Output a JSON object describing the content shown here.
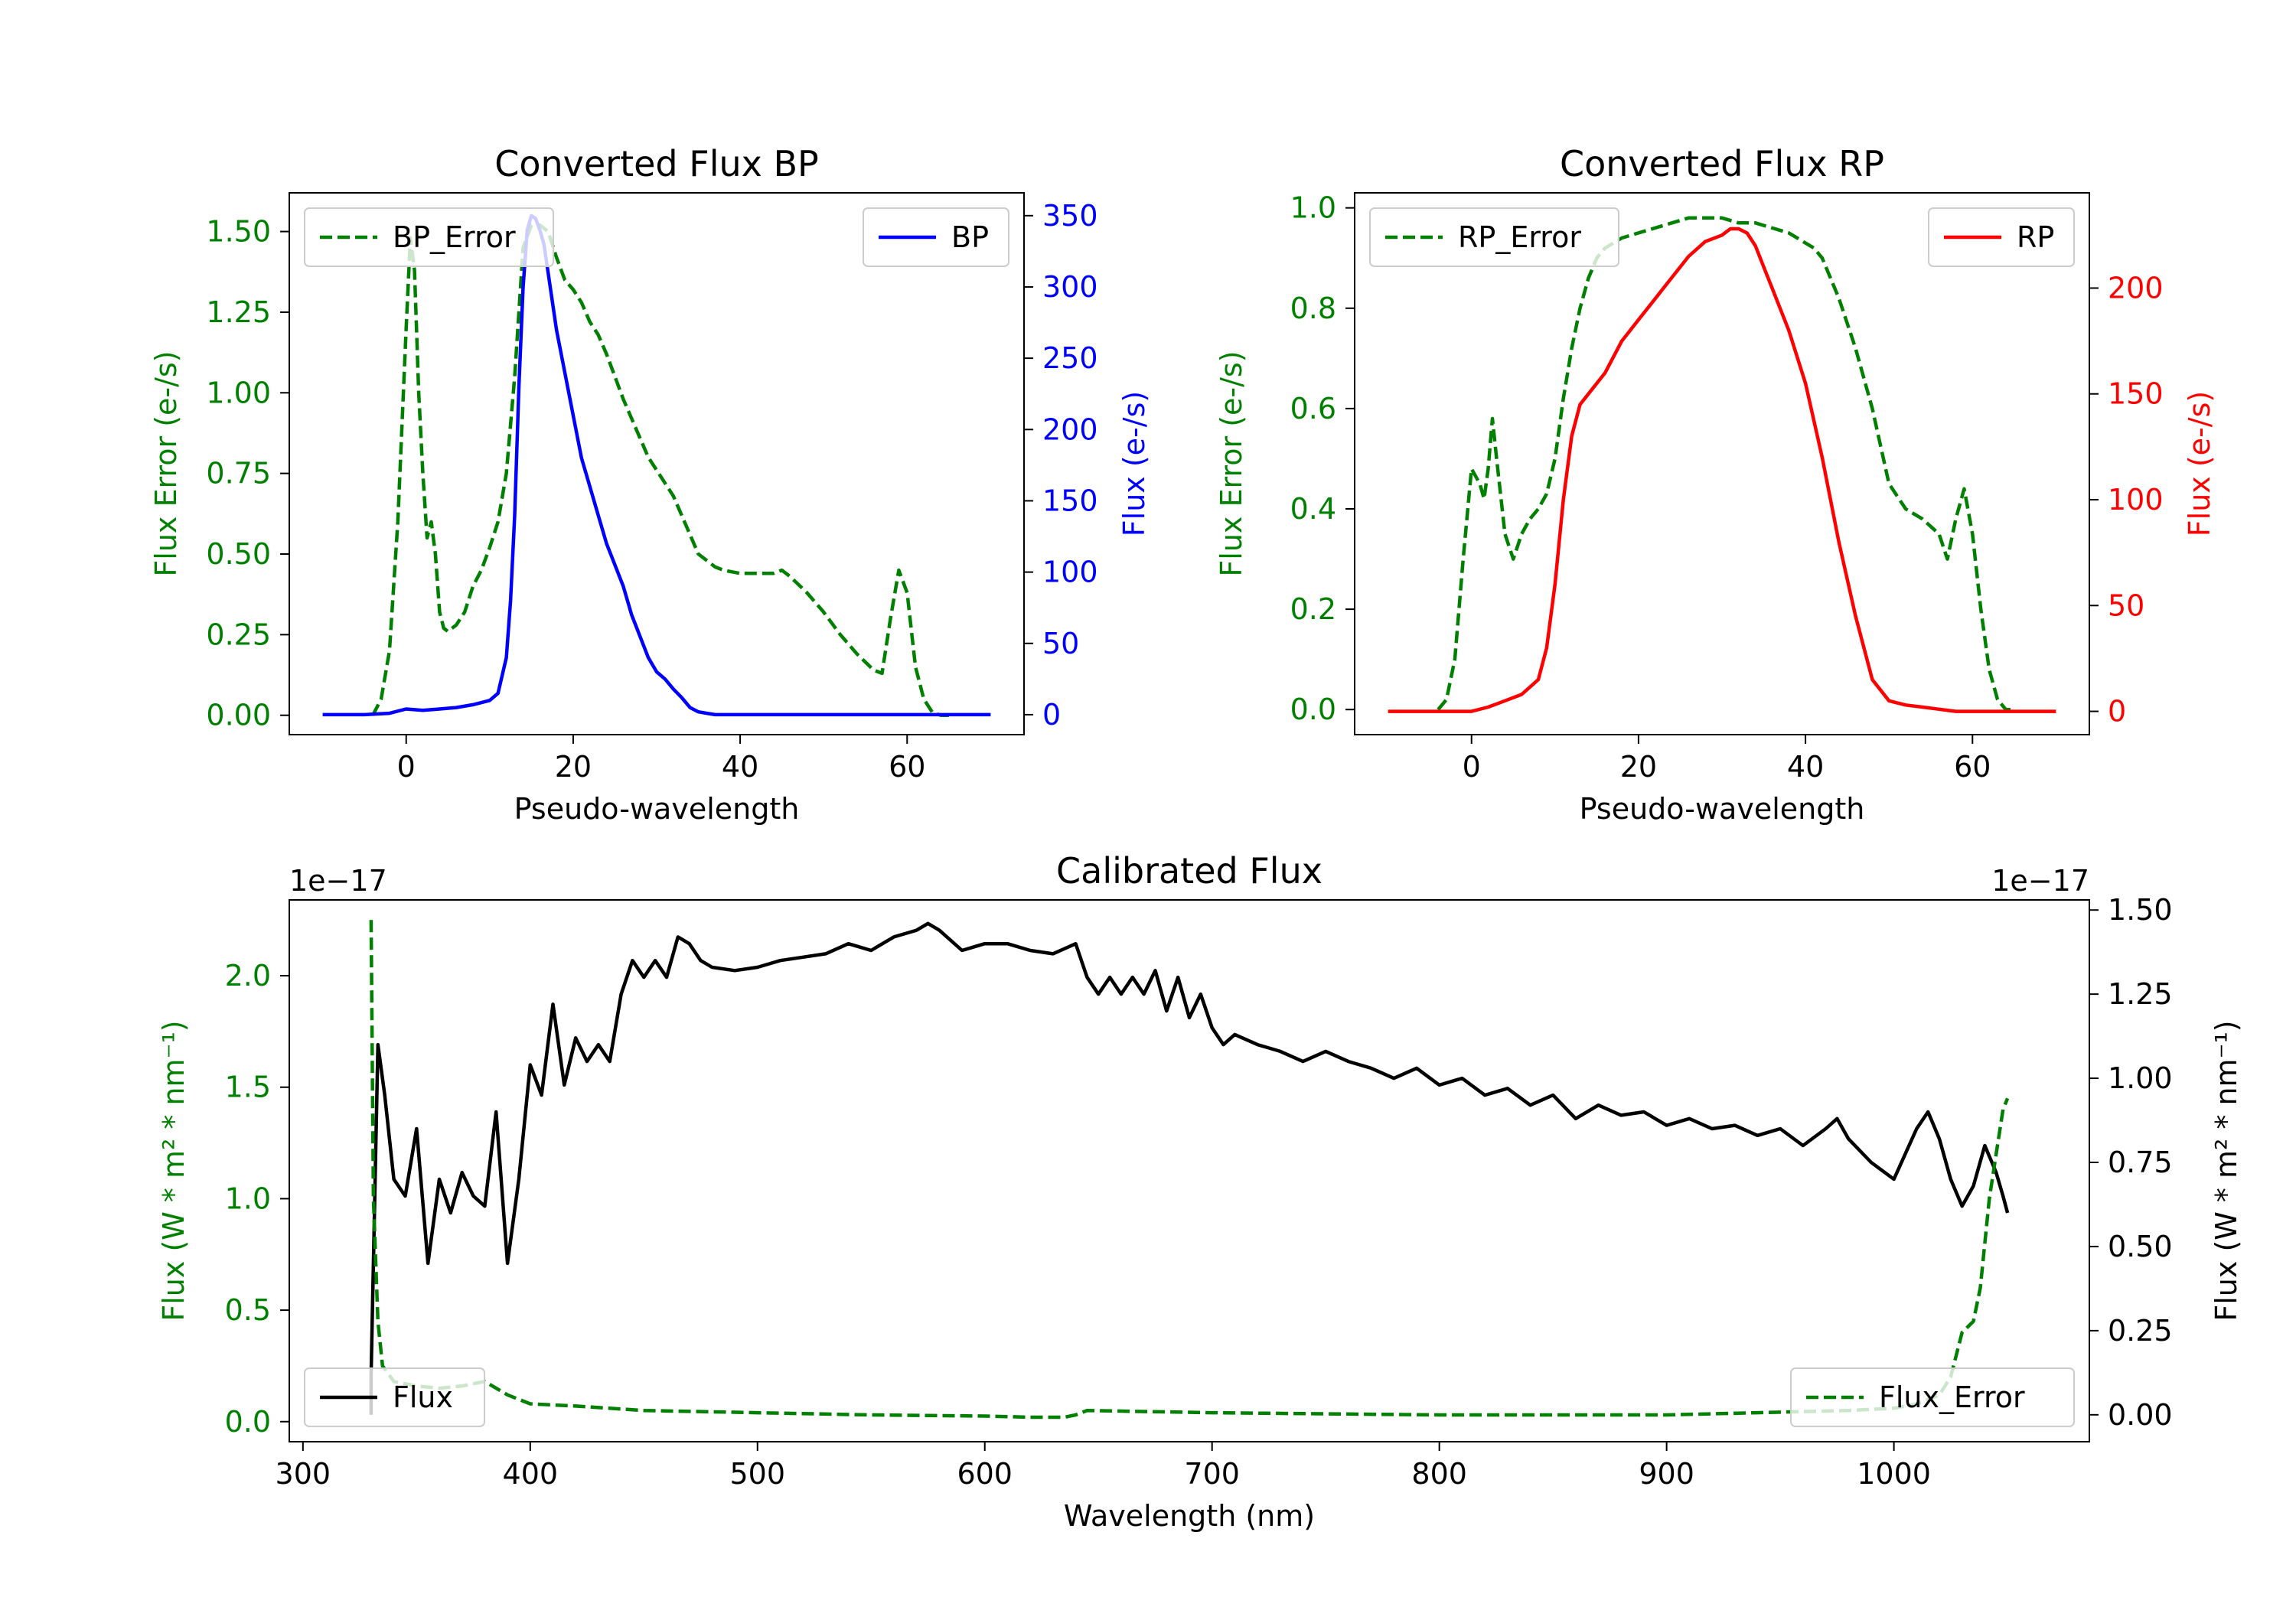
{
  "chart_data": [
    {
      "type": "line",
      "title": "Converted Flux BP",
      "xlabel": "Pseudo-wavelength",
      "ylabel_left": "Flux Error (e-/s)",
      "ylabel_right": "Flux (e-/s)",
      "xlim": [
        -14,
        74
      ],
      "ylim_left": [
        -0.06,
        1.62
      ],
      "ylim_right": [
        -14,
        366
      ],
      "xticks": [
        0,
        20,
        40,
        60
      ],
      "yticks_left": [
        0.0,
        0.25,
        0.5,
        0.75,
        1.0,
        1.25,
        1.5
      ],
      "yticks_left_labels": [
        "0.00",
        "0.25",
        "0.50",
        "0.75",
        "1.00",
        "1.25",
        "1.50"
      ],
      "yticks_right": [
        0,
        50,
        100,
        150,
        200,
        250,
        300,
        350
      ],
      "series": [
        {
          "name": "BP_Error",
          "axis": "left",
          "style": "dashed",
          "color": "#008000",
          "x": [
            -4,
            -3,
            -2,
            -1,
            0,
            0.5,
            1,
            1.5,
            2,
            2.5,
            3,
            3.5,
            4,
            4.5,
            5,
            6,
            7,
            8,
            9,
            10,
            11,
            12,
            13,
            14,
            15,
            16,
            17,
            18,
            19,
            20,
            21,
            22,
            23,
            24,
            25,
            26,
            27,
            28,
            29,
            30,
            31,
            32,
            33,
            34,
            35,
            36,
            37,
            38,
            40,
            42,
            44,
            45,
            46,
            48,
            50,
            52,
            54,
            56,
            57,
            58,
            59,
            60,
            61,
            62,
            63,
            64,
            65
          ],
          "values": [
            0.0,
            0.05,
            0.2,
            0.6,
            1.2,
            1.48,
            1.38,
            1.0,
            0.75,
            0.55,
            0.6,
            0.5,
            0.32,
            0.27,
            0.26,
            0.28,
            0.32,
            0.4,
            0.45,
            0.52,
            0.6,
            0.75,
            1.05,
            1.45,
            1.52,
            1.52,
            1.5,
            1.42,
            1.35,
            1.32,
            1.28,
            1.22,
            1.18,
            1.12,
            1.05,
            0.98,
            0.92,
            0.86,
            0.8,
            0.76,
            0.72,
            0.68,
            0.62,
            0.56,
            0.5,
            0.48,
            0.46,
            0.45,
            0.44,
            0.44,
            0.44,
            0.45,
            0.43,
            0.38,
            0.32,
            0.25,
            0.19,
            0.14,
            0.13,
            0.3,
            0.45,
            0.38,
            0.15,
            0.05,
            0.01,
            0.0,
            0.0
          ]
        },
        {
          "name": "BP",
          "axis": "right",
          "style": "solid",
          "color": "#0000ff",
          "x": [
            -10,
            -5,
            -2,
            0,
            2,
            4,
            6,
            8,
            10,
            11,
            12,
            12.5,
            13,
            13.5,
            14,
            14.5,
            15,
            15.5,
            16,
            16.5,
            17,
            18,
            19,
            20,
            21,
            22,
            23,
            24,
            25,
            26,
            27,
            28,
            29,
            30,
            31,
            32,
            33,
            34,
            35,
            36,
            37,
            38,
            40,
            42,
            44,
            46,
            48,
            50,
            52,
            55,
            60,
            65,
            70
          ],
          "values": [
            0,
            0,
            1,
            4,
            3,
            4,
            5,
            7,
            10,
            15,
            40,
            80,
            140,
            230,
            300,
            340,
            350,
            348,
            340,
            330,
            310,
            270,
            240,
            210,
            180,
            160,
            140,
            120,
            105,
            90,
            70,
            55,
            40,
            30,
            25,
            18,
            12,
            5,
            2,
            1,
            0,
            0,
            0,
            0,
            0,
            0,
            0,
            0,
            0,
            0,
            0,
            0,
            0
          ]
        }
      ],
      "legend": [
        {
          "label": "BP_Error",
          "placement": "top-left"
        },
        {
          "label": "BP",
          "placement": "top-right"
        }
      ]
    },
    {
      "type": "line",
      "title": "Converted Flux RP",
      "xlabel": "Pseudo-wavelength",
      "ylabel_left": "Flux Error (e-/s)",
      "ylabel_right": "Flux (e-/s)",
      "xlim": [
        -14,
        74
      ],
      "ylim_left": [
        -0.05,
        1.03
      ],
      "ylim_right": [
        -11,
        245
      ],
      "xticks": [
        0,
        20,
        40,
        60
      ],
      "yticks_left": [
        0.0,
        0.2,
        0.4,
        0.6,
        0.8,
        1.0
      ],
      "yticks_left_labels": [
        "0.0",
        "0.2",
        "0.4",
        "0.6",
        "0.8",
        "1.0"
      ],
      "yticks_right": [
        0,
        50,
        100,
        150,
        200
      ],
      "series": [
        {
          "name": "RP_Error",
          "axis": "left",
          "style": "dashed",
          "color": "#008000",
          "x": [
            -4,
            -3,
            -2,
            -1,
            0,
            1,
            1.5,
            2,
            2.5,
            3,
            4,
            5,
            6,
            7,
            8,
            9,
            10,
            11,
            12,
            13,
            14,
            15,
            16,
            18,
            20,
            22,
            24,
            26,
            28,
            30,
            32,
            34,
            36,
            38,
            40,
            41,
            42,
            44,
            46,
            48,
            50,
            52,
            54,
            56,
            57,
            58,
            59,
            60,
            61,
            62,
            63,
            64,
            65
          ],
          "values": [
            0.0,
            0.02,
            0.1,
            0.3,
            0.48,
            0.45,
            0.42,
            0.48,
            0.58,
            0.5,
            0.35,
            0.3,
            0.35,
            0.38,
            0.4,
            0.43,
            0.5,
            0.62,
            0.72,
            0.8,
            0.86,
            0.9,
            0.92,
            0.94,
            0.95,
            0.96,
            0.97,
            0.98,
            0.98,
            0.98,
            0.97,
            0.97,
            0.96,
            0.95,
            0.93,
            0.92,
            0.9,
            0.82,
            0.72,
            0.6,
            0.45,
            0.4,
            0.38,
            0.35,
            0.3,
            0.38,
            0.44,
            0.35,
            0.2,
            0.08,
            0.02,
            0.0,
            0.0
          ]
        },
        {
          "name": "RP",
          "axis": "right",
          "style": "solid",
          "color": "#ff0000",
          "x": [
            -10,
            -5,
            0,
            2,
            4,
            6,
            8,
            9,
            10,
            11,
            12,
            13,
            14,
            16,
            18,
            20,
            22,
            24,
            26,
            28,
            30,
            31,
            32,
            33,
            34,
            35,
            36,
            38,
            40,
            42,
            44,
            46,
            48,
            50,
            52,
            54,
            56,
            58,
            60,
            62,
            65,
            70
          ],
          "values": [
            0,
            0,
            0,
            2,
            5,
            8,
            15,
            30,
            60,
            100,
            130,
            145,
            150,
            160,
            175,
            185,
            195,
            205,
            215,
            222,
            225,
            228,
            228,
            226,
            220,
            210,
            200,
            180,
            155,
            120,
            80,
            45,
            15,
            5,
            3,
            2,
            1,
            0,
            0,
            0,
            0,
            0
          ]
        }
      ],
      "legend": [
        {
          "label": "RP_Error",
          "placement": "top-left"
        },
        {
          "label": "RP",
          "placement": "top-right"
        }
      ]
    },
    {
      "type": "line",
      "title": "Calibrated Flux",
      "xlabel": "Wavelength (nm)",
      "ylabel_left": "Flux (W * m² * nm⁻¹)",
      "ylabel_right": "Flux (W * m² * nm⁻¹)",
      "offset_left": "1e−17",
      "offset_right": "1e−17",
      "xlim": [
        294,
        1086
      ],
      "ylim_left": [
        -0.09,
        2.34
      ],
      "ylim_right": [
        -0.08,
        1.53
      ],
      "xticks": [
        300,
        400,
        500,
        600,
        700,
        800,
        900,
        1000
      ],
      "yticks_left": [
        0.0,
        0.5,
        1.0,
        1.5,
        2.0
      ],
      "yticks_left_labels": [
        "0.0",
        "0.5",
        "1.0",
        "1.5",
        "2.0"
      ],
      "yticks_right": [
        0.0,
        0.25,
        0.5,
        0.75,
        1.0,
        1.25,
        1.5
      ],
      "yticks_right_labels": [
        "0.00",
        "0.25",
        "0.50",
        "0.75",
        "1.00",
        "1.25",
        "1.50"
      ],
      "series": [
        {
          "name": "Flux",
          "axis": "right",
          "style": "solid",
          "color": "#000000",
          "x": [
            330,
            330,
            333,
            336,
            340,
            345,
            350,
            355,
            360,
            365,
            370,
            375,
            380,
            385,
            390,
            395,
            400,
            405,
            410,
            415,
            420,
            425,
            430,
            435,
            440,
            445,
            450,
            455,
            460,
            465,
            470,
            475,
            480,
            490,
            500,
            510,
            520,
            530,
            540,
            550,
            560,
            570,
            575,
            580,
            590,
            600,
            610,
            620,
            630,
            640,
            645,
            650,
            655,
            660,
            665,
            670,
            675,
            680,
            685,
            690,
            695,
            700,
            705,
            710,
            720,
            730,
            740,
            750,
            760,
            770,
            780,
            790,
            800,
            810,
            820,
            830,
            840,
            850,
            860,
            870,
            880,
            890,
            900,
            910,
            920,
            930,
            940,
            950,
            960,
            970,
            975,
            980,
            990,
            1000,
            1010,
            1015,
            1020,
            1025,
            1030,
            1035,
            1040,
            1045,
            1048,
            1050
          ],
          "values": [
            0,
            0.12,
            1.1,
            0.95,
            0.7,
            0.65,
            0.85,
            0.45,
            0.7,
            0.6,
            0.72,
            0.65,
            0.62,
            0.9,
            0.45,
            0.7,
            1.04,
            0.95,
            1.22,
            0.98,
            1.12,
            1.05,
            1.1,
            1.05,
            1.25,
            1.35,
            1.3,
            1.35,
            1.3,
            1.42,
            1.4,
            1.35,
            1.33,
            1.32,
            1.33,
            1.35,
            1.36,
            1.37,
            1.4,
            1.38,
            1.42,
            1.44,
            1.46,
            1.44,
            1.38,
            1.4,
            1.4,
            1.38,
            1.37,
            1.4,
            1.3,
            1.25,
            1.3,
            1.25,
            1.3,
            1.25,
            1.32,
            1.2,
            1.3,
            1.18,
            1.25,
            1.15,
            1.1,
            1.13,
            1.1,
            1.08,
            1.05,
            1.08,
            1.05,
            1.03,
            1.0,
            1.03,
            0.98,
            1.0,
            0.95,
            0.97,
            0.92,
            0.95,
            0.88,
            0.92,
            0.89,
            0.9,
            0.86,
            0.88,
            0.85,
            0.86,
            0.83,
            0.85,
            0.8,
            0.85,
            0.88,
            0.82,
            0.75,
            0.7,
            0.85,
            0.9,
            0.82,
            0.7,
            0.62,
            0.68,
            0.8,
            0.72,
            0.65,
            0.6
          ]
        },
        {
          "name": "Flux_Error",
          "axis": "left",
          "style": "dashed",
          "color": "#008000",
          "x": [
            330,
            331,
            333,
            335,
            340,
            350,
            360,
            370,
            380,
            390,
            400,
            420,
            450,
            500,
            550,
            600,
            620,
            635,
            640,
            645,
            700,
            800,
            900,
            940,
            980,
            1000,
            1010,
            1020,
            1025,
            1030,
            1035,
            1038,
            1040,
            1042,
            1045,
            1048,
            1050
          ],
          "values": [
            2.25,
            1.0,
            0.45,
            0.25,
            0.18,
            0.16,
            0.15,
            0.16,
            0.18,
            0.12,
            0.08,
            0.07,
            0.05,
            0.04,
            0.03,
            0.025,
            0.02,
            0.02,
            0.03,
            0.05,
            0.04,
            0.03,
            0.03,
            0.04,
            0.05,
            0.06,
            0.08,
            0.12,
            0.2,
            0.4,
            0.45,
            0.6,
            0.8,
            1.0,
            1.2,
            1.4,
            1.45
          ]
        }
      ],
      "legend": [
        {
          "label": "Flux",
          "placement": "lower-left"
        },
        {
          "label": "Flux_Error",
          "placement": "lower-right"
        }
      ]
    }
  ]
}
